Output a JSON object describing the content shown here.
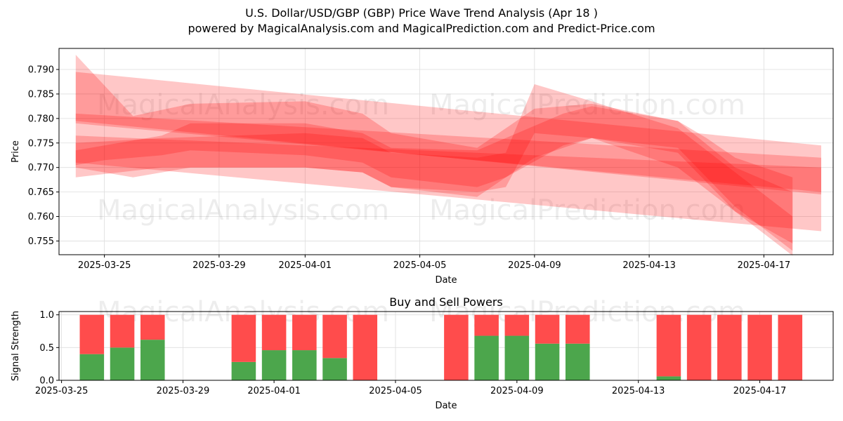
{
  "header": {
    "title": "U.S. Dollar/USD/GBP (GBP) Price Wave Trend Analysis (Apr 18 )",
    "subtitle": "powered by MagicalAnalysis.com and MagicalPrediction.com and Predict-Price.com"
  },
  "watermarks": [
    "MagicalAnalysis.com",
    "MagicalPrediction.com"
  ],
  "colors": {
    "band": "#ff0000",
    "buy": "#4ca64c",
    "sell": "#ff4c4c",
    "grid": "#dddddd"
  },
  "chart_data": [
    {
      "type": "area",
      "title": "",
      "xlabel": "Date",
      "ylabel": "Price",
      "xlim": [
        "2025-03-23T10:00",
        "2025-04-19T10:00"
      ],
      "ylim": [
        0.7522,
        0.7943
      ],
      "x_ticks": [
        "2025-03-25",
        "2025-03-29",
        "2025-04-01",
        "2025-04-05",
        "2025-04-09",
        "2025-04-13",
        "2025-04-17"
      ],
      "y_ticks": [
        0.755,
        0.76,
        0.765,
        0.77,
        0.775,
        0.78,
        0.785,
        0.79
      ],
      "grid": true,
      "bands": [
        {
          "x": [
            "2025-03-24",
            "2025-04-19"
          ],
          "upper": [
            0.7895,
            0.7745
          ],
          "lower": [
            0.7795,
            0.7645
          ]
        },
        {
          "x": [
            "2025-03-24",
            "2025-04-19"
          ],
          "upper": [
            0.781,
            0.772
          ],
          "lower": [
            0.779,
            0.765
          ]
        },
        {
          "x": [
            "2025-03-24",
            "2025-04-19"
          ],
          "upper": [
            0.7765,
            0.77
          ],
          "lower": [
            0.771,
            0.757
          ]
        },
        {
          "x": [
            "2025-03-24",
            "2025-03-25",
            "2025-03-27",
            "2025-03-28",
            "2025-04-01",
            "2025-04-03",
            "2025-04-04",
            "2025-04-07",
            "2025-04-08",
            "2025-04-10",
            "2025-04-11",
            "2025-04-14",
            "2025-04-15",
            "2025-04-16",
            "2025-04-18"
          ],
          "upper": [
            0.7735,
            0.7745,
            0.7765,
            0.779,
            0.779,
            0.777,
            0.774,
            0.7735,
            0.776,
            0.781,
            0.7825,
            0.7795,
            0.776,
            0.772,
            0.768
          ],
          "lower": [
            0.7705,
            0.7715,
            0.7725,
            0.7735,
            0.7725,
            0.771,
            0.768,
            0.766,
            0.768,
            0.7745,
            0.776,
            0.773,
            0.767,
            0.761,
            0.7545
          ]
        },
        {
          "x": [
            "2025-03-24",
            "2025-03-26",
            "2025-03-28",
            "2025-04-01",
            "2025-04-03",
            "2025-04-04",
            "2025-04-07",
            "2025-04-09",
            "2025-04-11",
            "2025-04-14",
            "2025-04-16",
            "2025-04-18"
          ],
          "upper": [
            0.793,
            0.7805,
            0.783,
            0.7835,
            0.781,
            0.777,
            0.774,
            0.782,
            0.783,
            0.7795,
            0.77,
            0.765
          ],
          "lower": [
            0.77,
            0.768,
            0.77,
            0.77,
            0.769,
            0.766,
            0.764,
            0.772,
            0.776,
            0.774,
            0.762,
            0.753
          ]
        },
        {
          "x": [
            "2025-03-24",
            "2025-03-27",
            "2025-04-01",
            "2025-04-03",
            "2025-04-04",
            "2025-04-07",
            "2025-04-08",
            "2025-04-09",
            "2025-04-11",
            "2025-04-14",
            "2025-04-18"
          ],
          "upper": [
            0.775,
            0.776,
            0.777,
            0.776,
            0.773,
            0.772,
            0.773,
            0.787,
            0.7835,
            0.778,
            0.76
          ],
          "lower": [
            0.768,
            0.77,
            0.77,
            0.769,
            0.766,
            0.765,
            0.766,
            0.777,
            0.776,
            0.77,
            0.752
          ]
        }
      ]
    },
    {
      "type": "bar",
      "title": "Buy and Sell Powers",
      "xlabel": "Date",
      "ylabel": "Signal Strength",
      "xlim": [
        "2025-03-24T22:00",
        "2025-04-19T10:00"
      ],
      "ylim": [
        0,
        1.05
      ],
      "x_ticks": [
        "2025-03-25",
        "2025-03-29",
        "2025-04-01",
        "2025-04-05",
        "2025-04-09",
        "2025-04-13",
        "2025-04-17"
      ],
      "y_ticks": [
        0.0,
        0.5,
        1.0
      ],
      "grid": true,
      "categories": [
        "2025-03-26",
        "2025-03-27",
        "2025-03-28",
        "2025-03-31",
        "2025-04-01",
        "2025-04-02",
        "2025-04-03",
        "2025-04-04",
        "2025-04-07",
        "2025-04-08",
        "2025-04-09",
        "2025-04-10",
        "2025-04-11",
        "2025-04-14",
        "2025-04-15",
        "2025-04-16",
        "2025-04-17",
        "2025-04-18"
      ],
      "series": [
        {
          "values": [
            0.4,
            0.5,
            0.62,
            0.28,
            0.46,
            0.46,
            0.34,
            0.0,
            0.0,
            0.68,
            0.68,
            0.56,
            0.56,
            0.06,
            0.0,
            0.0,
            0.0,
            0.0
          ]
        },
        {
          "values": [
            0.6,
            0.5,
            0.38,
            0.72,
            0.54,
            0.54,
            0.66,
            1.0,
            1.0,
            0.32,
            0.32,
            0.44,
            0.44,
            0.94,
            1.0,
            1.0,
            1.0,
            1.0
          ]
        }
      ]
    }
  ]
}
